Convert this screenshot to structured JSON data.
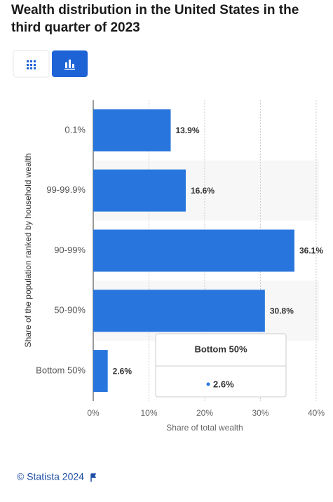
{
  "chart_data": {
    "type": "barh",
    "title": "Wealth distribution in the United States in the third quarter of 2023",
    "categories": [
      "0.1%",
      "99-99.9%",
      "90-99%",
      "50-90%",
      "Bottom 50%"
    ],
    "values": [
      13.9,
      16.6,
      36.1,
      30.8,
      2.6
    ],
    "value_labels": [
      "13.9%",
      "16.6%",
      "36.1%",
      "30.8%",
      "2.6%"
    ],
    "color": "#2876dd",
    "xlim": [
      0,
      40
    ],
    "xticks": [
      {
        "value": 0,
        "label": "0%"
      },
      {
        "value": 10,
        "label": "10%"
      },
      {
        "value": 20,
        "label": "20%"
      },
      {
        "value": 30,
        "label": "30%"
      },
      {
        "value": 40,
        "label": "40%"
      }
    ],
    "xlabel": "Share of total wealth",
    "ylabel": "Share of the population ranked by household wealth",
    "grid": true,
    "source": "© Statista 2024"
  }
}
